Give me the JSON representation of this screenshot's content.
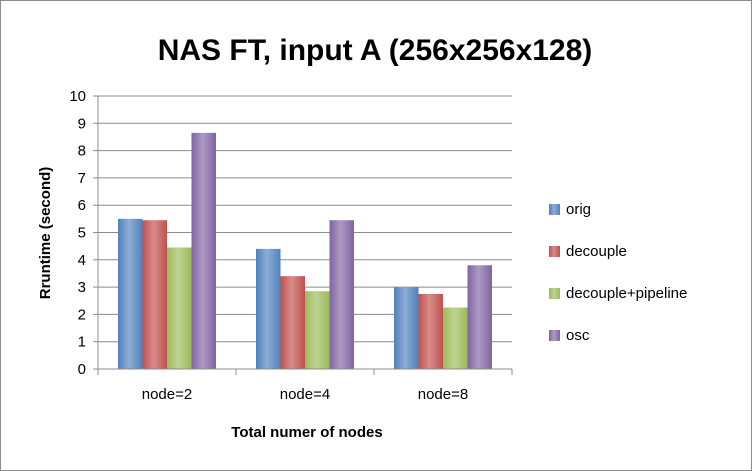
{
  "chart_data": {
    "type": "bar",
    "title": "NAS FT, input A (256x256x128)",
    "xlabel": "Total numer of nodes",
    "ylabel": "Rruntime (second)",
    "categories": [
      "node=2",
      "node=4",
      "node=8"
    ],
    "ylim": [
      0,
      10
    ],
    "yticks": [
      "0",
      "1",
      "2",
      "3",
      "4",
      "5",
      "6",
      "7",
      "8",
      "9",
      "10"
    ],
    "grid": true,
    "legend_position": "right",
    "series": [
      {
        "name": "orig",
        "values": [
          5.5,
          4.4,
          3.0
        ],
        "color": "#4f81bd"
      },
      {
        "name": "decouple",
        "values": [
          5.45,
          3.4,
          2.75
        ],
        "color": "#c0504d"
      },
      {
        "name": "decouple+pipeline",
        "values": [
          4.45,
          2.85,
          2.25
        ],
        "color": "#9bbb59"
      },
      {
        "name": "osc",
        "values": [
          8.65,
          5.45,
          3.8
        ],
        "color": "#8064a2"
      }
    ]
  }
}
